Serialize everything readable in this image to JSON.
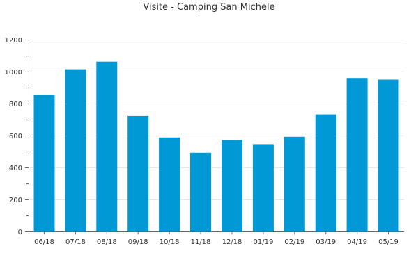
{
  "chart_data": {
    "type": "bar",
    "title": "Visite - Camping San Michele",
    "xlabel": "",
    "ylabel": "",
    "categories": [
      "06/18",
      "07/18",
      "08/18",
      "09/18",
      "10/18",
      "11/18",
      "12/18",
      "01/19",
      "02/19",
      "03/19",
      "04/19",
      "05/19"
    ],
    "values": [
      855,
      1015,
      1062,
      722,
      588,
      492,
      572,
      546,
      592,
      732,
      960,
      950
    ],
    "ylim": [
      0,
      1200
    ],
    "yticks": [
      "0",
      "200",
      "400",
      "600",
      "800",
      "1000",
      "1200"
    ],
    "grid": true,
    "legend": "none",
    "colors": {
      "bar": "#0099d6",
      "axis": "#666666",
      "grid": "#e6e6e6",
      "text": "#333333"
    }
  }
}
